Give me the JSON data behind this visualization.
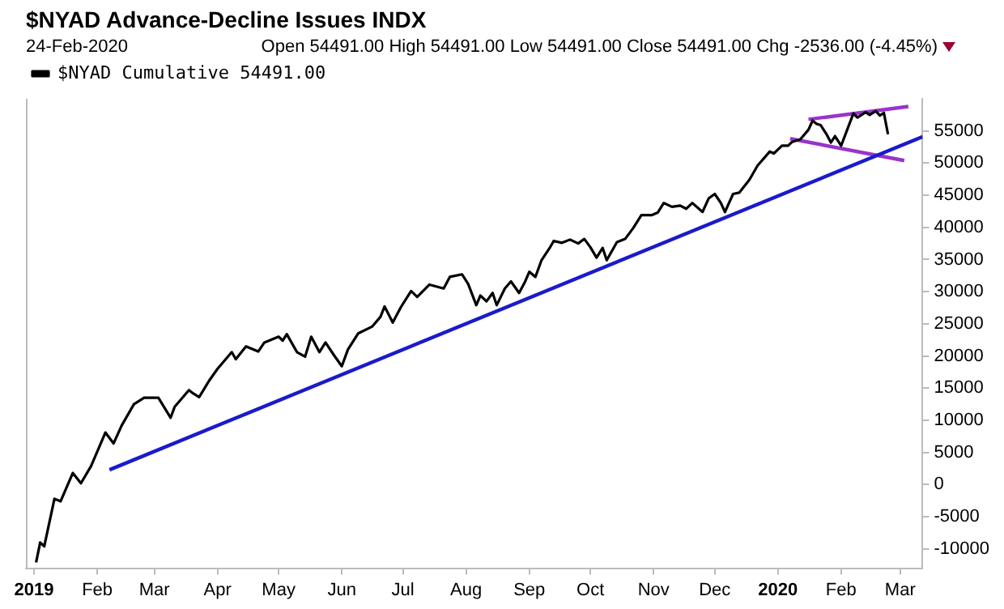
{
  "chart_data": {
    "type": "line",
    "title": "$NYAD Advance-Decline Issues INDX",
    "subtitle": "24-Feb-2020",
    "annotations": [
      "Open 54491.00 High 54491.00 Low 54491.00 Close 54491.00 Chg -2536.00 (-4.45%)"
    ],
    "xlim": [
      "2018-12-28",
      "2020-03-12"
    ],
    "xticks": [
      {
        "value": "2019-01-01",
        "label": "2019"
      },
      {
        "value": "2019-02-01",
        "label": "Feb"
      },
      {
        "value": "2019-03-01",
        "label": "Mar"
      },
      {
        "value": "2019-04-01",
        "label": "Apr"
      },
      {
        "value": "2019-05-01",
        "label": "May"
      },
      {
        "value": "2019-06-01",
        "label": "Jun"
      },
      {
        "value": "2019-07-01",
        "label": "Jul"
      },
      {
        "value": "2019-08-01",
        "label": "Aug"
      },
      {
        "value": "2019-09-01",
        "label": "Sep"
      },
      {
        "value": "2019-10-01",
        "label": "Oct"
      },
      {
        "value": "2019-11-01",
        "label": "Nov"
      },
      {
        "value": "2019-12-01",
        "label": "Dec"
      },
      {
        "value": "2020-01-01",
        "label": "2020"
      },
      {
        "value": "2020-02-01",
        "label": "Feb"
      },
      {
        "value": "2020-03-01",
        "label": "Mar"
      }
    ],
    "ylim": [
      -13000,
      60000
    ],
    "yticks": [
      -10000,
      -5000,
      0,
      5000,
      10000,
      15000,
      20000,
      25000,
      30000,
      35000,
      40000,
      45000,
      50000,
      55000
    ],
    "grid": false,
    "legend": "top left",
    "marker": "none",
    "line_style": "solid",
    "series": [
      {
        "name": "$NYAD Cumulative 54491.00",
        "color": "#000000",
        "x": [
          "2019-01-02",
          "2019-01-04",
          "2019-01-06",
          "2019-01-11",
          "2019-01-14",
          "2019-01-20",
          "2019-01-24",
          "2019-01-29",
          "2019-02-05",
          "2019-02-09",
          "2019-02-13",
          "2019-02-19",
          "2019-02-24",
          "2019-03-03",
          "2019-03-09",
          "2019-03-11",
          "2019-03-18",
          "2019-03-20",
          "2019-03-23",
          "2019-03-28",
          "2019-04-01",
          "2019-04-08",
          "2019-04-10",
          "2019-04-15",
          "2019-04-21",
          "2019-04-24",
          "2019-05-01",
          "2019-05-03",
          "2019-05-05",
          "2019-05-10",
          "2019-05-14",
          "2019-05-17",
          "2019-05-21",
          "2019-05-24",
          "2019-05-28",
          "2019-06-01",
          "2019-06-04",
          "2019-06-09",
          "2019-06-16",
          "2019-06-20",
          "2019-06-22",
          "2019-06-26",
          "2019-06-30",
          "2019-07-05",
          "2019-07-08",
          "2019-07-14",
          "2019-07-21",
          "2019-07-24",
          "2019-07-30",
          "2019-08-02",
          "2019-08-06",
          "2019-08-08",
          "2019-08-11",
          "2019-08-14",
          "2019-08-16",
          "2019-08-20",
          "2019-08-23",
          "2019-08-27",
          "2019-08-30",
          "2019-09-01",
          "2019-09-04",
          "2019-09-07",
          "2019-09-11",
          "2019-09-13",
          "2019-09-17",
          "2019-09-21",
          "2019-09-25",
          "2019-09-28",
          "2019-10-01",
          "2019-10-04",
          "2019-10-07",
          "2019-10-09",
          "2019-10-14",
          "2019-10-18",
          "2019-10-22",
          "2019-10-26",
          "2019-10-31",
          "2019-11-03",
          "2019-11-06",
          "2019-11-10",
          "2019-11-14",
          "2019-11-17",
          "2019-11-20",
          "2019-11-25",
          "2019-11-28",
          "2019-12-01",
          "2019-12-04",
          "2019-12-06",
          "2019-12-10",
          "2019-12-13",
          "2019-12-18",
          "2019-12-22",
          "2019-12-28",
          "2019-12-30",
          "2020-01-03",
          "2020-01-06",
          "2020-01-08",
          "2020-01-12",
          "2020-01-16",
          "2020-01-18",
          "2020-01-20",
          "2020-01-22",
          "2020-01-25",
          "2020-01-27",
          "2020-01-29",
          "2020-02-01",
          "2020-02-04",
          "2020-02-07",
          "2020-02-09",
          "2020-02-13",
          "2020-02-15",
          "2020-02-18",
          "2020-02-20",
          "2020-02-22",
          "2020-02-24"
        ],
        "values": [
          -12100,
          -9000,
          -9600,
          -2200,
          -2600,
          1800,
          200,
          2900,
          8100,
          6400,
          9200,
          12500,
          13500,
          13500,
          10400,
          12100,
          14700,
          14200,
          13600,
          16200,
          18000,
          20600,
          19500,
          21500,
          20700,
          22100,
          23000,
          22400,
          23400,
          20600,
          19900,
          23000,
          20600,
          22100,
          20200,
          18400,
          21000,
          23500,
          24600,
          26100,
          27700,
          25200,
          27600,
          30100,
          29200,
          31100,
          30500,
          32300,
          32700,
          31200,
          27900,
          29400,
          28500,
          29800,
          27900,
          30500,
          31600,
          29800,
          31600,
          33100,
          32300,
          34900,
          36800,
          37900,
          37600,
          38100,
          37500,
          38200,
          36900,
          35300,
          36800,
          34900,
          37700,
          38200,
          39900,
          41900,
          41900,
          42300,
          43800,
          43200,
          43400,
          42900,
          43800,
          42400,
          44500,
          45200,
          43800,
          42400,
          45200,
          45400,
          47400,
          49600,
          51800,
          51500,
          52700,
          52700,
          53300,
          53700,
          55200,
          56600,
          56100,
          55900,
          54400,
          53200,
          54200,
          52700,
          55200,
          57700,
          57100,
          57900,
          57500,
          58100,
          57400,
          57800,
          54491
        ]
      },
      {
        "type": "line",
        "color": "#1a1acc",
        "x": [
          "2019-02-07",
          "2020-03-12"
        ],
        "values": [
          2300,
          54100
        ]
      },
      {
        "type": "line",
        "color": "#9933cc",
        "x": [
          "2020-01-16",
          "2020-03-05"
        ],
        "values": [
          56800,
          58800
        ]
      },
      {
        "type": "line",
        "color": "#9933cc",
        "x": [
          "2020-01-07",
          "2020-03-03"
        ],
        "values": [
          53800,
          50400
        ]
      }
    ]
  }
}
